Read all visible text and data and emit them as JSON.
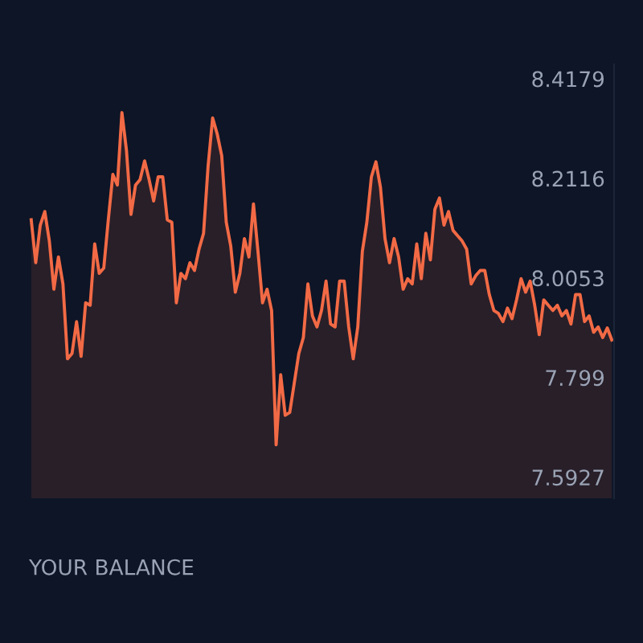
{
  "chart_data": {
    "type": "area",
    "categories": [
      null,
      null,
      null,
      null,
      null,
      null,
      null,
      null,
      null,
      null,
      null,
      null,
      null,
      null,
      null,
      null,
      null,
      null,
      null,
      null,
      null,
      null,
      null,
      null,
      null,
      null,
      null,
      null,
      null,
      null,
      null,
      null,
      null,
      null,
      null,
      null,
      null,
      null,
      null,
      null,
      null,
      null,
      null,
      null,
      null,
      null,
      null,
      null,
      null,
      null,
      null,
      null,
      null,
      null,
      null,
      null,
      null,
      null,
      null,
      null,
      null,
      null,
      null,
      null,
      null,
      null,
      null,
      null,
      null,
      null,
      null,
      null,
      null,
      null,
      null,
      null,
      null,
      null,
      null,
      null,
      null,
      null,
      null,
      null,
      null,
      null,
      null,
      null,
      null,
      null,
      null,
      null,
      null,
      null,
      null,
      null,
      null,
      null,
      null,
      null,
      null,
      null,
      null,
      null,
      null,
      null,
      null,
      null,
      null,
      null,
      null,
      null,
      null,
      null,
      null,
      null,
      null,
      null,
      null,
      null,
      null,
      null,
      null,
      null,
      null,
      null,
      null,
      null,
      null
    ],
    "series": [
      {
        "color": "#f26a45",
        "values": [
          8.126,
          8.037,
          8.115,
          8.143,
          8.082,
          7.982,
          8.049,
          7.993,
          7.838,
          7.849,
          7.915,
          7.843,
          7.954,
          7.949,
          8.076,
          8.015,
          8.026,
          8.126,
          8.22,
          8.198,
          8.348,
          8.27,
          8.137,
          8.198,
          8.209,
          8.248,
          8.209,
          8.165,
          8.215,
          8.215,
          8.126,
          8.121,
          7.954,
          8.015,
          8.004,
          8.037,
          8.021,
          8.065,
          8.098,
          8.237,
          8.337,
          8.304,
          8.259,
          8.121,
          8.071,
          7.976,
          8.015,
          8.087,
          8.049,
          8.159,
          8.06,
          7.954,
          7.982,
          7.938,
          7.66,
          7.805,
          7.721,
          7.727,
          7.788,
          7.849,
          7.882,
          7.993,
          7.927,
          7.904,
          7.938,
          7.999,
          7.91,
          7.904,
          7.999,
          7.999,
          7.904,
          7.838,
          7.904,
          8.06,
          8.121,
          8.215,
          8.246,
          8.193,
          8.087,
          8.037,
          8.087,
          8.049,
          7.982,
          8.004,
          7.993,
          8.076,
          8.004,
          8.098,
          8.043,
          8.148,
          8.171,
          8.115,
          8.143,
          8.104,
          8.093,
          8.082,
          8.065,
          7.993,
          8.01,
          8.021,
          8.021,
          7.971,
          7.938,
          7.932,
          7.915,
          7.943,
          7.921,
          7.96,
          8.004,
          7.976,
          7.999,
          7.949,
          7.888,
          7.96,
          7.949,
          7.938,
          7.949,
          7.927,
          7.938,
          7.91,
          7.971,
          7.971,
          7.915,
          7.927,
          7.893,
          7.904,
          7.882,
          7.902,
          7.877
        ]
      }
    ],
    "ylim": [
      7.549,
      8.448
    ],
    "yticks": [
      8.4179,
      8.2116,
      8.0053,
      7.799,
      7.5927
    ],
    "tick_labels": "y",
    "grid": false,
    "legend": false,
    "annotations": [
      "YOUR BALANCE"
    ]
  }
}
